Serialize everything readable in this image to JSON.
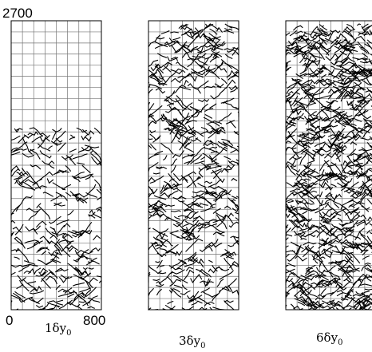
{
  "axis": {
    "top": "2700",
    "left": "0",
    "right": "800"
  },
  "panels": [
    {
      "label": {
        "main": "1δy",
        "sub": "0"
      }
    },
    {
      "label": {
        "main": "3δy",
        "sub": "0"
      }
    },
    {
      "label": {
        "main": "6δy",
        "sub": "0"
      }
    }
  ]
}
